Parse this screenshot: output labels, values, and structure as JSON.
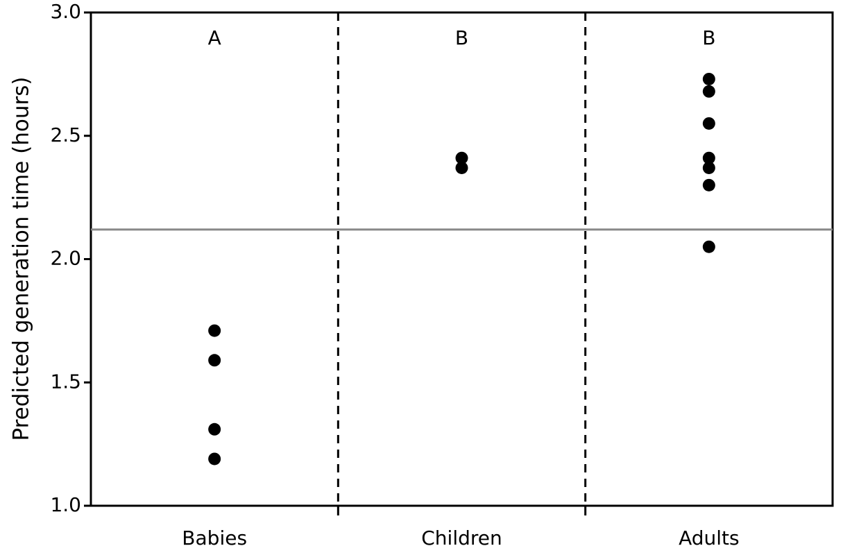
{
  "chart_data": {
    "type": "strip",
    "y_label": "Predicted generation time (hours)",
    "categories": [
      "Babies",
      "Children",
      "Adults"
    ],
    "group_letters": [
      "A",
      "B",
      "B"
    ],
    "values": [
      [
        1.71,
        1.59,
        1.31,
        1.19
      ],
      [
        2.41,
        2.37
      ],
      [
        2.73,
        2.68,
        2.55,
        2.41,
        2.37,
        2.3,
        2.05
      ]
    ],
    "color": "#000000",
    "hline": 2.12,
    "hline_color": "#888888",
    "ylim": [
      1.0,
      3.0
    ],
    "yticks": [
      {
        "value": 1.0,
        "label": "1.0"
      },
      1.5,
      {
        "value": 2.0,
        "label": "2.0"
      },
      2.5,
      {
        "value": 3.0,
        "label": "3.0"
      }
    ]
  }
}
